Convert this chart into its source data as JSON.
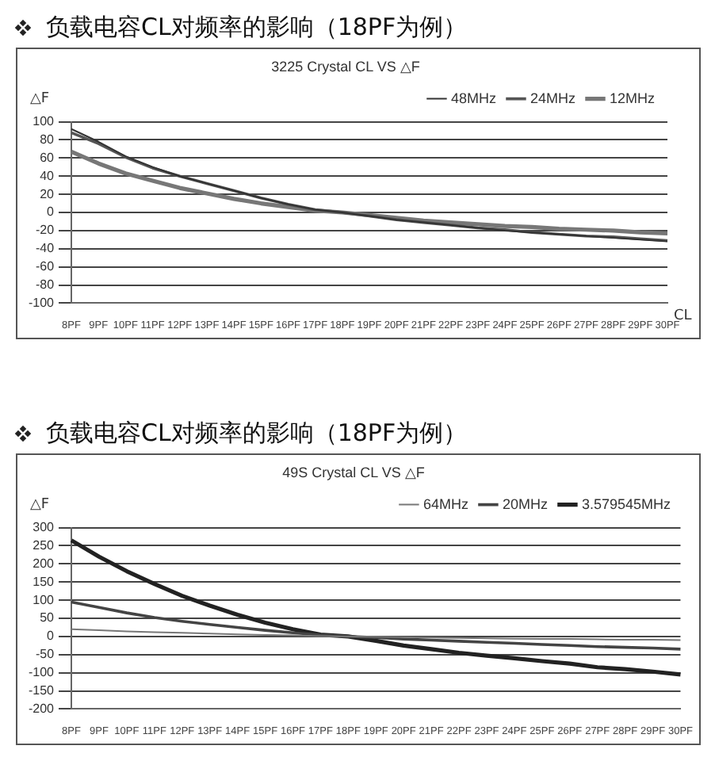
{
  "chart_data": [
    {
      "type": "line",
      "title": "负载电容CL对频率的影响（18PF为例）",
      "subtitle": "3225 Crystal CL VS △F",
      "ylabel": "△F",
      "xlabel": "CL",
      "categories": [
        "8PF",
        "9PF",
        "10PF",
        "11PF",
        "12PF",
        "13PF",
        "14PF",
        "15PF",
        "16PF",
        "17PF",
        "18PF",
        "19PF",
        "20PF",
        "21PF",
        "22PF",
        "23PF",
        "24PF",
        "25PF",
        "26PF",
        "27PF",
        "28PF",
        "29PF",
        "30PF"
      ],
      "series": [
        {
          "name": "48MHz",
          "color": "#333333",
          "values": [
            92,
            78,
            62,
            50,
            40,
            32,
            24,
            16,
            9,
            3,
            0,
            -4,
            -8,
            -11,
            -14,
            -17,
            -20,
            -22,
            -24,
            -26,
            -28,
            -30,
            -32
          ]
        },
        {
          "name": "24MHz",
          "color": "#555555",
          "values": [
            88,
            76,
            61,
            49,
            40,
            32,
            24,
            16,
            9,
            3,
            0,
            -4,
            -8,
            -11,
            -14,
            -17,
            -19,
            -22,
            -24,
            -26,
            -27,
            -29,
            -31
          ]
        },
        {
          "name": "12MHz",
          "color": "#777777",
          "values": [
            67,
            54,
            43,
            35,
            27,
            21,
            15,
            10,
            6,
            2,
            0,
            -3,
            -6,
            -9,
            -11,
            -13,
            -15,
            -16,
            -18,
            -19,
            -20,
            -22,
            -23
          ]
        }
      ],
      "ylim": [
        -100,
        100
      ],
      "yticks": [
        -100,
        -80,
        -60,
        -40,
        -20,
        0,
        20,
        40,
        60,
        80,
        100
      ],
      "grid": "y",
      "legend": "top right",
      "marker": "none",
      "line_style": "solid"
    },
    {
      "type": "line",
      "title": "负载电容CL对频率的影响（18PF为例）",
      "subtitle": "49S Crystal CL VS △F",
      "ylabel": "△F",
      "categories": [
        "8PF",
        "9PF",
        "10PF",
        "11PF",
        "12PF",
        "13PF",
        "14PF",
        "15PF",
        "16PF",
        "17PF",
        "18PF",
        "19PF",
        "20PF",
        "21PF",
        "22PF",
        "23PF",
        "24PF",
        "25PF",
        "26PF",
        "27PF",
        "28PF",
        "29PF",
        "30PF"
      ],
      "series": [
        {
          "name": "64MHz",
          "color": "#777777",
          "values": [
            20,
            17,
            14,
            12,
            10,
            8,
            6,
            4,
            3,
            1,
            0,
            -1,
            -2,
            -3,
            -4,
            -5,
            -6,
            -7,
            -7,
            -8,
            -9,
            -9,
            -10
          ]
        },
        {
          "name": "20MHz",
          "color": "#444444",
          "values": [
            95,
            80,
            65,
            52,
            42,
            33,
            25,
            17,
            10,
            4,
            0,
            -3,
            -7,
            -10,
            -13,
            -16,
            -19,
            -22,
            -25,
            -28,
            -30,
            -32,
            -35
          ]
        },
        {
          "name": "3.579545MHz",
          "color": "#222222",
          "values": [
            265,
            220,
            180,
            145,
            112,
            85,
            60,
            38,
            20,
            5,
            0,
            -12,
            -25,
            -35,
            -45,
            -53,
            -60,
            -68,
            -75,
            -85,
            -90,
            -97,
            -105
          ]
        }
      ],
      "ylim": [
        -200,
        300
      ],
      "yticks": [
        -200,
        -150,
        -100,
        -50,
        0,
        50,
        100,
        150,
        200,
        250,
        300
      ],
      "grid": "y",
      "legend": "top right",
      "marker": "none",
      "line_style": "solid"
    }
  ]
}
